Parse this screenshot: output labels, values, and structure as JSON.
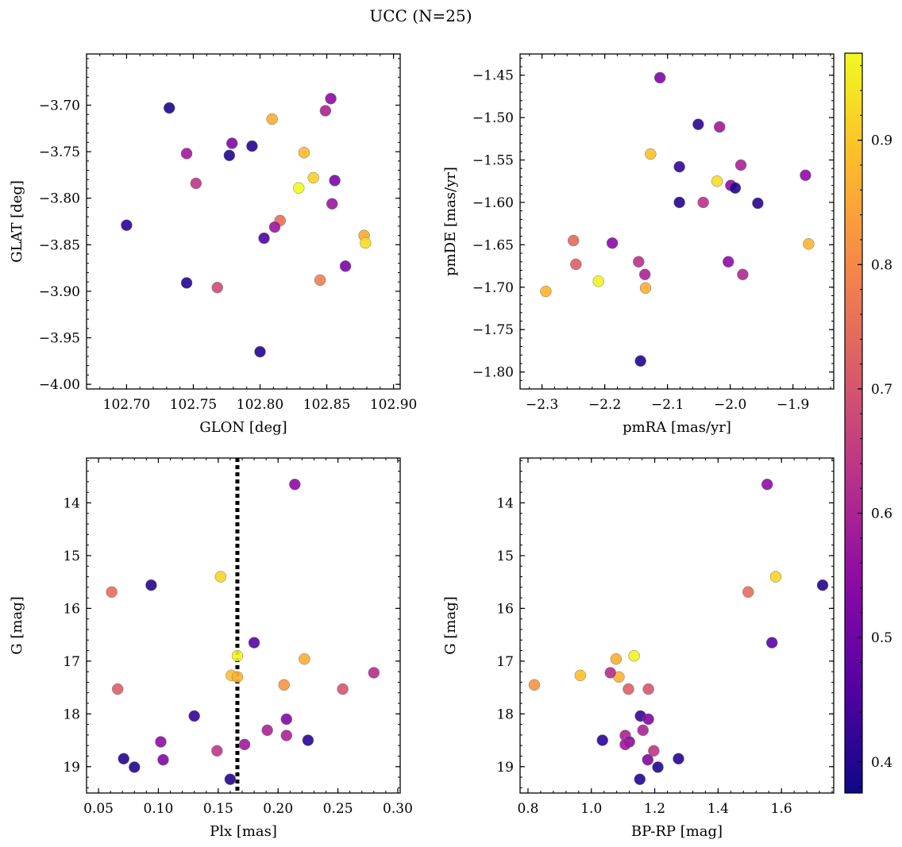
{
  "figure": {
    "title": "UCC (N=25)"
  },
  "colorbar": {
    "vmin": 0.375,
    "vmax": 0.97,
    "ticks": [
      0.4,
      0.5,
      0.6,
      0.7,
      0.8,
      0.9
    ],
    "tick_labels": [
      "0.4",
      "0.5",
      "0.6",
      "0.7",
      "0.8",
      "0.9"
    ],
    "colormap": "plasma"
  },
  "chart_data": [
    {
      "type": "scatter",
      "title": "",
      "xlabel": "GLON [deg]",
      "ylabel": "GLAT [deg]",
      "xlim": [
        102.67,
        102.905
      ],
      "ylim": [
        -4.005,
        -3.645
      ],
      "invert_y": false,
      "xticks": [
        102.7,
        102.75,
        102.8,
        102.85,
        102.9
      ],
      "xtick_labels": [
        "102.70",
        "102.75",
        "102.80",
        "102.85",
        "102.90"
      ],
      "yticks": [
        -3.7,
        -3.75,
        -3.8,
        -3.85,
        -3.9,
        -3.95,
        -4.0
      ],
      "ytick_labels": [
        "−3.70",
        "−3.75",
        "−3.80",
        "−3.85",
        "−3.90",
        "−3.95",
        "−4.00"
      ],
      "points": [
        {
          "x": 102.732,
          "y": -3.703,
          "c": 0.39
        },
        {
          "x": 102.853,
          "y": -3.693,
          "c": 0.55
        },
        {
          "x": 102.849,
          "y": -3.706,
          "c": 0.6
        },
        {
          "x": 102.809,
          "y": -3.715,
          "c": 0.86
        },
        {
          "x": 102.745,
          "y": -3.752,
          "c": 0.58
        },
        {
          "x": 102.779,
          "y": -3.741,
          "c": 0.53
        },
        {
          "x": 102.777,
          "y": -3.754,
          "c": 0.4
        },
        {
          "x": 102.794,
          "y": -3.744,
          "c": 0.4
        },
        {
          "x": 102.833,
          "y": -3.751,
          "c": 0.88
        },
        {
          "x": 102.752,
          "y": -3.784,
          "c": 0.64
        },
        {
          "x": 102.84,
          "y": -3.778,
          "c": 0.91
        },
        {
          "x": 102.829,
          "y": -3.789,
          "c": 0.97
        },
        {
          "x": 102.856,
          "y": -3.781,
          "c": 0.52
        },
        {
          "x": 102.854,
          "y": -3.806,
          "c": 0.57
        },
        {
          "x": 102.7,
          "y": -3.829,
          "c": 0.41
        },
        {
          "x": 102.815,
          "y": -3.824,
          "c": 0.75
        },
        {
          "x": 102.811,
          "y": -3.831,
          "c": 0.57
        },
        {
          "x": 102.803,
          "y": -3.843,
          "c": 0.45
        },
        {
          "x": 102.878,
          "y": -3.84,
          "c": 0.85
        },
        {
          "x": 102.879,
          "y": -3.848,
          "c": 0.93
        },
        {
          "x": 102.864,
          "y": -3.873,
          "c": 0.52
        },
        {
          "x": 102.745,
          "y": -3.891,
          "c": 0.4
        },
        {
          "x": 102.768,
          "y": -3.896,
          "c": 0.68
        },
        {
          "x": 102.845,
          "y": -3.888,
          "c": 0.78
        },
        {
          "x": 102.8,
          "y": -3.965,
          "c": 0.4
        }
      ]
    },
    {
      "type": "scatter",
      "title": "",
      "xlabel": "pmRA [mas/yr]",
      "ylabel": "pmDE [mas/yr]",
      "xlim": [
        -2.335,
        -1.835
      ],
      "ylim": [
        -1.82,
        -1.425
      ],
      "invert_y": false,
      "xticks": [
        -2.3,
        -2.2,
        -2.1,
        -2.0,
        -1.9
      ],
      "xtick_labels": [
        "−2.3",
        "−2.2",
        "−2.1",
        "−2.0",
        "−1.9"
      ],
      "yticks": [
        -1.45,
        -1.5,
        -1.55,
        -1.6,
        -1.65,
        -1.7,
        -1.75,
        -1.8
      ],
      "ytick_labels": [
        "−1.45",
        "−1.50",
        "−1.55",
        "−1.60",
        "−1.65",
        "−1.70",
        "−1.75",
        "−1.80"
      ],
      "points": [
        {
          "x": -2.112,
          "y": -1.453,
          "c": 0.52
        },
        {
          "x": -2.051,
          "y": -1.508,
          "c": 0.41
        },
        {
          "x": -2.017,
          "y": -1.511,
          "c": 0.58
        },
        {
          "x": -2.127,
          "y": -1.543,
          "c": 0.89
        },
        {
          "x": -2.081,
          "y": -1.558,
          "c": 0.42
        },
        {
          "x": -1.983,
          "y": -1.556,
          "c": 0.6
        },
        {
          "x": -1.88,
          "y": -1.568,
          "c": 0.55
        },
        {
          "x": -2.021,
          "y": -1.575,
          "c": 0.93
        },
        {
          "x": -1.999,
          "y": -1.58,
          "c": 0.55
        },
        {
          "x": -1.992,
          "y": -1.583,
          "c": 0.4
        },
        {
          "x": -2.081,
          "y": -1.6,
          "c": 0.4
        },
        {
          "x": -2.043,
          "y": -1.6,
          "c": 0.63
        },
        {
          "x": -1.956,
          "y": -1.601,
          "c": 0.41
        },
        {
          "x": -2.25,
          "y": -1.645,
          "c": 0.74
        },
        {
          "x": -2.188,
          "y": -1.648,
          "c": 0.54
        },
        {
          "x": -2.246,
          "y": -1.673,
          "c": 0.72
        },
        {
          "x": -2.146,
          "y": -1.67,
          "c": 0.63
        },
        {
          "x": -2.003,
          "y": -1.67,
          "c": 0.55
        },
        {
          "x": -1.875,
          "y": -1.649,
          "c": 0.87
        },
        {
          "x": -2.136,
          "y": -1.685,
          "c": 0.6
        },
        {
          "x": -1.98,
          "y": -1.685,
          "c": 0.61
        },
        {
          "x": -2.21,
          "y": -1.693,
          "c": 0.96
        },
        {
          "x": -2.135,
          "y": -1.701,
          "c": 0.86
        },
        {
          "x": -2.294,
          "y": -1.705,
          "c": 0.87
        },
        {
          "x": -2.143,
          "y": -1.787,
          "c": 0.4
        }
      ]
    },
    {
      "type": "scatter",
      "title": "",
      "xlabel": "Plx [mas]",
      "ylabel": "G [mag]",
      "xlim": [
        0.04,
        0.302
      ],
      "ylim": [
        19.5,
        13.15
      ],
      "invert_y": true,
      "vline": {
        "x": 0.166,
        "style": "dotted"
      },
      "xticks": [
        0.05,
        0.1,
        0.15,
        0.2,
        0.25,
        0.3
      ],
      "xtick_labels": [
        "0.05",
        "0.10",
        "0.15",
        "0.20",
        "0.25",
        "0.30"
      ],
      "yticks": [
        14,
        15,
        16,
        17,
        18,
        19
      ],
      "ytick_labels": [
        "14",
        "15",
        "16",
        "17",
        "18",
        "19"
      ],
      "points": [
        {
          "x": 0.214,
          "y": 13.65,
          "c": 0.55
        },
        {
          "x": 0.152,
          "y": 15.4,
          "c": 0.92
        },
        {
          "x": 0.061,
          "y": 15.69,
          "c": 0.75
        },
        {
          "x": 0.094,
          "y": 15.56,
          "c": 0.4
        },
        {
          "x": 0.18,
          "y": 16.65,
          "c": 0.47
        },
        {
          "x": 0.166,
          "y": 16.9,
          "c": 0.96
        },
        {
          "x": 0.222,
          "y": 16.96,
          "c": 0.86
        },
        {
          "x": 0.161,
          "y": 17.27,
          "c": 0.89
        },
        {
          "x": 0.166,
          "y": 17.3,
          "c": 0.87
        },
        {
          "x": 0.28,
          "y": 17.22,
          "c": 0.62
        },
        {
          "x": 0.205,
          "y": 17.45,
          "c": 0.82
        },
        {
          "x": 0.066,
          "y": 17.53,
          "c": 0.72
        },
        {
          "x": 0.254,
          "y": 17.53,
          "c": 0.7
        },
        {
          "x": 0.13,
          "y": 18.04,
          "c": 0.42
        },
        {
          "x": 0.207,
          "y": 18.1,
          "c": 0.53
        },
        {
          "x": 0.191,
          "y": 18.31,
          "c": 0.6
        },
        {
          "x": 0.207,
          "y": 18.41,
          "c": 0.6
        },
        {
          "x": 0.225,
          "y": 18.5,
          "c": 0.41
        },
        {
          "x": 0.102,
          "y": 18.53,
          "c": 0.55
        },
        {
          "x": 0.172,
          "y": 18.58,
          "c": 0.58
        },
        {
          "x": 0.149,
          "y": 18.7,
          "c": 0.64
        },
        {
          "x": 0.071,
          "y": 18.85,
          "c": 0.4
        },
        {
          "x": 0.104,
          "y": 18.87,
          "c": 0.53
        },
        {
          "x": 0.08,
          "y": 19.01,
          "c": 0.4
        },
        {
          "x": 0.16,
          "y": 19.24,
          "c": 0.4
        }
      ]
    },
    {
      "type": "scatter",
      "title": "",
      "xlabel": "BP-RP [mag]",
      "ylabel": "G [mag]",
      "xlim": [
        0.775,
        1.765
      ],
      "ylim": [
        19.5,
        13.15
      ],
      "invert_y": true,
      "xticks": [
        0.8,
        1.0,
        1.2,
        1.4,
        1.6
      ],
      "xtick_labels": [
        "0.8",
        "1.0",
        "1.2",
        "1.4",
        "1.6"
      ],
      "yticks": [
        14,
        15,
        16,
        17,
        18,
        19
      ],
      "ytick_labels": [
        "14",
        "15",
        "16",
        "17",
        "18",
        "19"
      ],
      "points": [
        {
          "x": 1.555,
          "y": 13.65,
          "c": 0.55
        },
        {
          "x": 1.582,
          "y": 15.4,
          "c": 0.92
        },
        {
          "x": 1.495,
          "y": 15.69,
          "c": 0.75
        },
        {
          "x": 1.73,
          "y": 15.56,
          "c": 0.4
        },
        {
          "x": 1.57,
          "y": 16.65,
          "c": 0.47
        },
        {
          "x": 1.135,
          "y": 16.9,
          "c": 0.96
        },
        {
          "x": 1.078,
          "y": 16.96,
          "c": 0.86
        },
        {
          "x": 0.965,
          "y": 17.27,
          "c": 0.89
        },
        {
          "x": 1.087,
          "y": 17.3,
          "c": 0.87
        },
        {
          "x": 1.06,
          "y": 17.22,
          "c": 0.62
        },
        {
          "x": 0.82,
          "y": 17.45,
          "c": 0.82
        },
        {
          "x": 1.117,
          "y": 17.53,
          "c": 0.72
        },
        {
          "x": 1.18,
          "y": 17.53,
          "c": 0.7
        },
        {
          "x": 1.155,
          "y": 18.04,
          "c": 0.42
        },
        {
          "x": 1.18,
          "y": 18.1,
          "c": 0.53
        },
        {
          "x": 1.163,
          "y": 18.31,
          "c": 0.6
        },
        {
          "x": 1.107,
          "y": 18.41,
          "c": 0.6
        },
        {
          "x": 1.035,
          "y": 18.5,
          "c": 0.41
        },
        {
          "x": 1.12,
          "y": 18.53,
          "c": 0.55
        },
        {
          "x": 1.107,
          "y": 18.58,
          "c": 0.58
        },
        {
          "x": 1.197,
          "y": 18.7,
          "c": 0.64
        },
        {
          "x": 1.275,
          "y": 18.85,
          "c": 0.4
        },
        {
          "x": 1.178,
          "y": 18.87,
          "c": 0.53
        },
        {
          "x": 1.21,
          "y": 19.01,
          "c": 0.4
        },
        {
          "x": 1.153,
          "y": 19.24,
          "c": 0.4
        }
      ]
    }
  ]
}
